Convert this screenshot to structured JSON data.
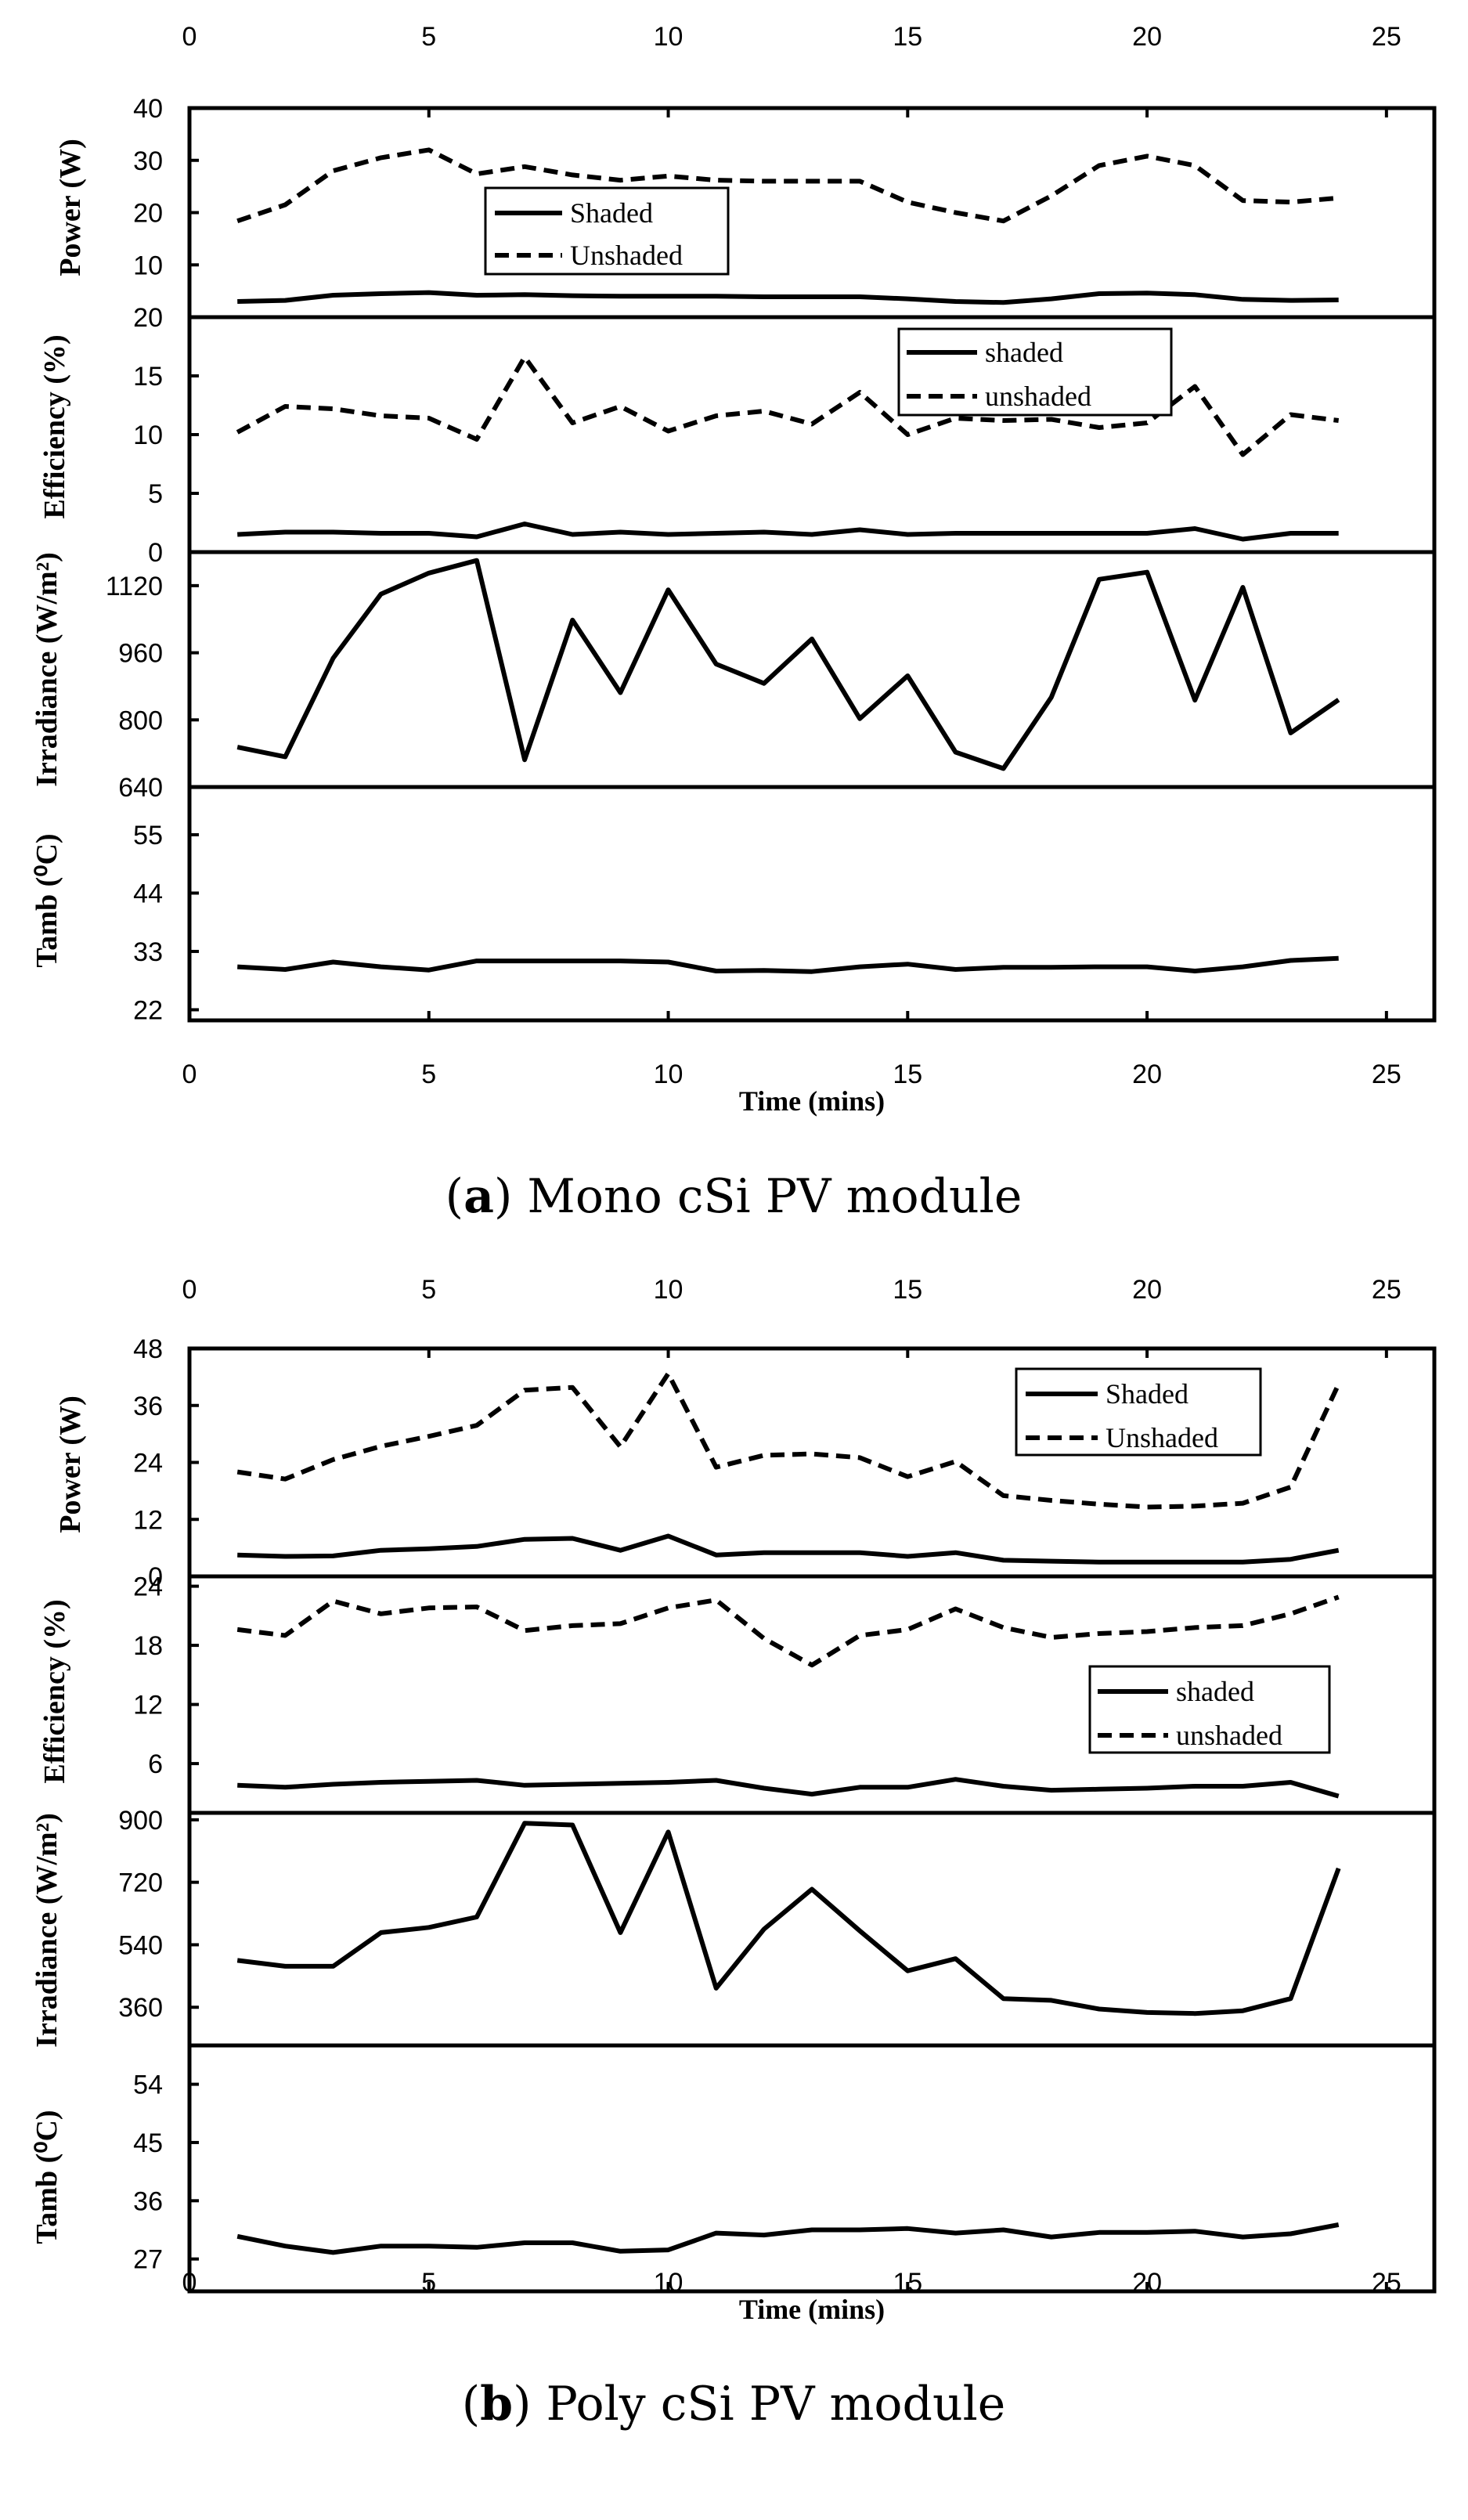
{
  "chart_data": [
    {
      "type": "line",
      "caption_label": "a",
      "caption_text": ") Mono cSi PV module",
      "x_axis": {
        "label": "Time (mins)",
        "range": [
          0,
          26
        ],
        "ticks": [
          0,
          5,
          10,
          15,
          20,
          25
        ]
      },
      "panels": [
        {
          "ylabel": "Power (W)",
          "ylim": [
            0,
            40
          ],
          "yticks": [
            10,
            20,
            30,
            40
          ],
          "legend": {
            "position": "center",
            "entries": [
              "Shaded",
              "Unshaded"
            ]
          },
          "series": [
            {
              "name": "Shaded",
              "style": "solid",
              "x": [
                1,
                2,
                3,
                4,
                5,
                6,
                7,
                8,
                9,
                10,
                11,
                12,
                13,
                14,
                15,
                16,
                17,
                18,
                19,
                20,
                21,
                22,
                23,
                24
              ],
              "values": [
                3.0,
                3.2,
                4.2,
                4.5,
                4.7,
                4.2,
                4.3,
                4.1,
                4.0,
                4.0,
                4.0,
                3.9,
                3.9,
                3.9,
                3.5,
                3.0,
                2.8,
                3.5,
                4.5,
                4.6,
                4.3,
                3.4,
                3.2,
                3.3
              ]
            },
            {
              "name": "Unshaded",
              "style": "dashed",
              "x": [
                1,
                2,
                3,
                4,
                5,
                6,
                7,
                8,
                9,
                10,
                11,
                12,
                13,
                14,
                15,
                16,
                17,
                18,
                19,
                20,
                21,
                22,
                23,
                24
              ],
              "values": [
                18.4,
                21.5,
                28.0,
                30.5,
                32.0,
                27.4,
                28.8,
                27.2,
                26.2,
                27.0,
                26.2,
                26.0,
                26.0,
                26.0,
                22.0,
                20.0,
                18.4,
                23.2,
                29.0,
                30.8,
                29.0,
                22.3,
                22.0,
                22.8
              ]
            }
          ]
        },
        {
          "ylabel": "Efficiency (%)",
          "ylim": [
            0,
            20
          ],
          "yticks": [
            0,
            5,
            10,
            15,
            20
          ],
          "legend": {
            "position": "top-center",
            "entries": [
              "shaded",
              "unshaded"
            ]
          },
          "series": [
            {
              "name": "shaded",
              "style": "solid",
              "x": [
                1,
                2,
                3,
                4,
                5,
                6,
                7,
                8,
                9,
                10,
                11,
                12,
                13,
                14,
                15,
                16,
                17,
                18,
                19,
                20,
                21,
                22,
                23,
                24
              ],
              "values": [
                1.5,
                1.7,
                1.7,
                1.6,
                1.6,
                1.3,
                2.4,
                1.5,
                1.7,
                1.5,
                1.6,
                1.7,
                1.5,
                1.9,
                1.5,
                1.6,
                1.6,
                1.6,
                1.6,
                1.6,
                2.0,
                1.1,
                1.6,
                1.6
              ]
            },
            {
              "name": "unshaded",
              "style": "dashed",
              "x": [
                1,
                2,
                3,
                4,
                5,
                6,
                7,
                8,
                9,
                10,
                11,
                12,
                13,
                14,
                15,
                16,
                17,
                18,
                19,
                20,
                21,
                22,
                23,
                24
              ],
              "values": [
                10.2,
                12.4,
                12.2,
                11.6,
                11.4,
                9.6,
                16.6,
                11.0,
                12.4,
                10.3,
                11.6,
                12.0,
                10.9,
                13.6,
                10.0,
                11.4,
                11.2,
                11.3,
                10.6,
                11.0,
                14.1,
                8.3,
                11.7,
                11.2
              ]
            }
          ]
        },
        {
          "ylabel": "Irradiance (W/m²)",
          "ylim": [
            640,
            1200
          ],
          "yticks": [
            640,
            800,
            960,
            1120
          ],
          "series": [
            {
              "name": "Irradiance",
              "style": "solid",
              "x": [
                1,
                2,
                3,
                4,
                5,
                6,
                7,
                8,
                9,
                10,
                11,
                12,
                13,
                14,
                15,
                16,
                17,
                18,
                19,
                20,
                21,
                22,
                23,
                24
              ],
              "values": [
                735,
                712,
                947,
                1100,
                1150,
                1180,
                705,
                1038,
                865,
                1110,
                933,
                887,
                993,
                803,
                905,
                723,
                684,
                854,
                1135,
                1152,
                847,
                1116,
                769,
                848
              ]
            }
          ]
        },
        {
          "ylabel": "Tamb (⁰C)",
          "ylim": [
            20,
            64
          ],
          "yticks": [
            22,
            33,
            44,
            55
          ],
          "series": [
            {
              "name": "Tamb",
              "style": "solid",
              "x": [
                1,
                2,
                3,
                4,
                5,
                6,
                7,
                8,
                9,
                10,
                11,
                12,
                13,
                14,
                15,
                16,
                17,
                18,
                19,
                20,
                21,
                22,
                23,
                24
              ],
              "values": [
                30.1,
                29.6,
                31.0,
                30.1,
                29.5,
                31.2,
                31.2,
                31.2,
                31.2,
                31.0,
                29.3,
                29.4,
                29.2,
                30.1,
                30.6,
                29.6,
                30.0,
                30.0,
                30.1,
                30.1,
                29.3,
                30.1,
                31.3,
                31.7
              ]
            }
          ]
        }
      ]
    },
    {
      "type": "line",
      "caption_label": "b",
      "caption_text": ") Poly cSi PV module",
      "x_axis": {
        "label": "Time (mins)",
        "range": [
          0,
          26
        ],
        "ticks": [
          0,
          5,
          10,
          15,
          20,
          25
        ]
      },
      "panels": [
        {
          "ylabel": "Power (W)",
          "ylim": [
            0,
            48
          ],
          "yticks": [
            0,
            12,
            24,
            36,
            48
          ],
          "legend": {
            "position": "top-right",
            "entries": [
              "Shaded",
              "Unshaded"
            ]
          },
          "series": [
            {
              "name": "Shaded",
              "style": "solid",
              "x": [
                1,
                2,
                3,
                4,
                5,
                6,
                7,
                8,
                9,
                10,
                11,
                12,
                13,
                14,
                15,
                16,
                17,
                18,
                19,
                20,
                21,
                22,
                23,
                24
              ],
              "values": [
                4.5,
                4.2,
                4.3,
                5.5,
                5.8,
                6.3,
                7.8,
                8.0,
                5.5,
                8.5,
                4.5,
                5.0,
                5.0,
                5.0,
                4.2,
                5.0,
                3.4,
                3.2,
                3.0,
                3.0,
                3.0,
                3.0,
                3.6,
                5.5
              ]
            },
            {
              "name": "Unshaded",
              "style": "dashed",
              "x": [
                1,
                2,
                3,
                4,
                5,
                6,
                7,
                8,
                9,
                10,
                11,
                12,
                13,
                14,
                15,
                16,
                17,
                18,
                19,
                20,
                21,
                22,
                23,
                24
              ],
              "values": [
                22.0,
                20.5,
                24.6,
                27.4,
                29.5,
                31.8,
                39.2,
                39.8,
                27.3,
                42.7,
                23.0,
                25.5,
                25.8,
                25.0,
                21.0,
                24.2,
                17.0,
                16.0,
                15.2,
                14.6,
                14.8,
                15.4,
                18.8,
                40.5
              ]
            }
          ]
        },
        {
          "ylabel": "Efficiency (%)",
          "ylim": [
            1,
            25
          ],
          "yticks": [
            6,
            12,
            18,
            24
          ],
          "legend": {
            "position": "right",
            "entries": [
              "shaded",
              "unshaded"
            ]
          },
          "series": [
            {
              "name": "shaded",
              "style": "solid",
              "x": [
                1,
                2,
                3,
                4,
                5,
                6,
                7,
                8,
                9,
                10,
                11,
                12,
                13,
                14,
                15,
                16,
                17,
                18,
                19,
                20,
                21,
                22,
                23,
                24
              ],
              "values": [
                3.8,
                3.6,
                3.9,
                4.1,
                4.2,
                4.3,
                3.8,
                3.9,
                4.0,
                4.1,
                4.3,
                3.5,
                2.9,
                3.6,
                3.6,
                4.4,
                3.7,
                3.3,
                3.4,
                3.5,
                3.7,
                3.7,
                4.1,
                2.7
              ]
            },
            {
              "name": "unshaded",
              "style": "dashed",
              "x": [
                1,
                2,
                3,
                4,
                5,
                6,
                7,
                8,
                9,
                10,
                11,
                12,
                13,
                14,
                15,
                16,
                17,
                18,
                19,
                20,
                21,
                22,
                23,
                24
              ],
              "values": [
                19.6,
                19.0,
                22.5,
                21.2,
                21.8,
                21.9,
                19.5,
                20.0,
                20.2,
                21.8,
                22.6,
                18.7,
                16.0,
                19.0,
                19.6,
                21.7,
                19.8,
                18.8,
                19.2,
                19.4,
                19.8,
                20.0,
                21.2,
                22.9
              ]
            }
          ]
        },
        {
          "ylabel": "Irradiance (W/m²)",
          "ylim": [
            250,
            920
          ],
          "yticks": [
            360,
            540,
            720,
            900
          ],
          "series": [
            {
              "name": "Irradiance",
              "style": "solid",
              "x": [
                1,
                2,
                3,
                4,
                5,
                6,
                7,
                8,
                9,
                10,
                11,
                12,
                13,
                14,
                15,
                16,
                17,
                18,
                19,
                20,
                21,
                22,
                23,
                24
              ],
              "values": [
                495,
                478,
                478,
                575,
                590,
                620,
                890,
                885,
                575,
                865,
                415,
                585,
                700,
                580,
                465,
                500,
                385,
                380,
                355,
                345,
                342,
                350,
                385,
                760
              ]
            }
          ]
        },
        {
          "ylabel": "Tamb (⁰C)",
          "ylim": [
            22,
            60
          ],
          "yticks": [
            27,
            36,
            45,
            54
          ],
          "series": [
            {
              "name": "Tamb",
              "style": "solid",
              "x": [
                1,
                2,
                3,
                4,
                5,
                6,
                7,
                8,
                9,
                10,
                11,
                12,
                13,
                14,
                15,
                16,
                17,
                18,
                19,
                20,
                21,
                22,
                23,
                24
              ],
              "values": [
                30.5,
                29.0,
                28.0,
                29.0,
                29.0,
                28.8,
                29.5,
                29.5,
                28.2,
                28.4,
                31.0,
                30.7,
                31.5,
                31.5,
                31.7,
                31.0,
                31.5,
                30.4,
                31.1,
                31.1,
                31.3,
                30.4,
                30.9,
                32.3
              ]
            }
          ]
        }
      ]
    }
  ]
}
